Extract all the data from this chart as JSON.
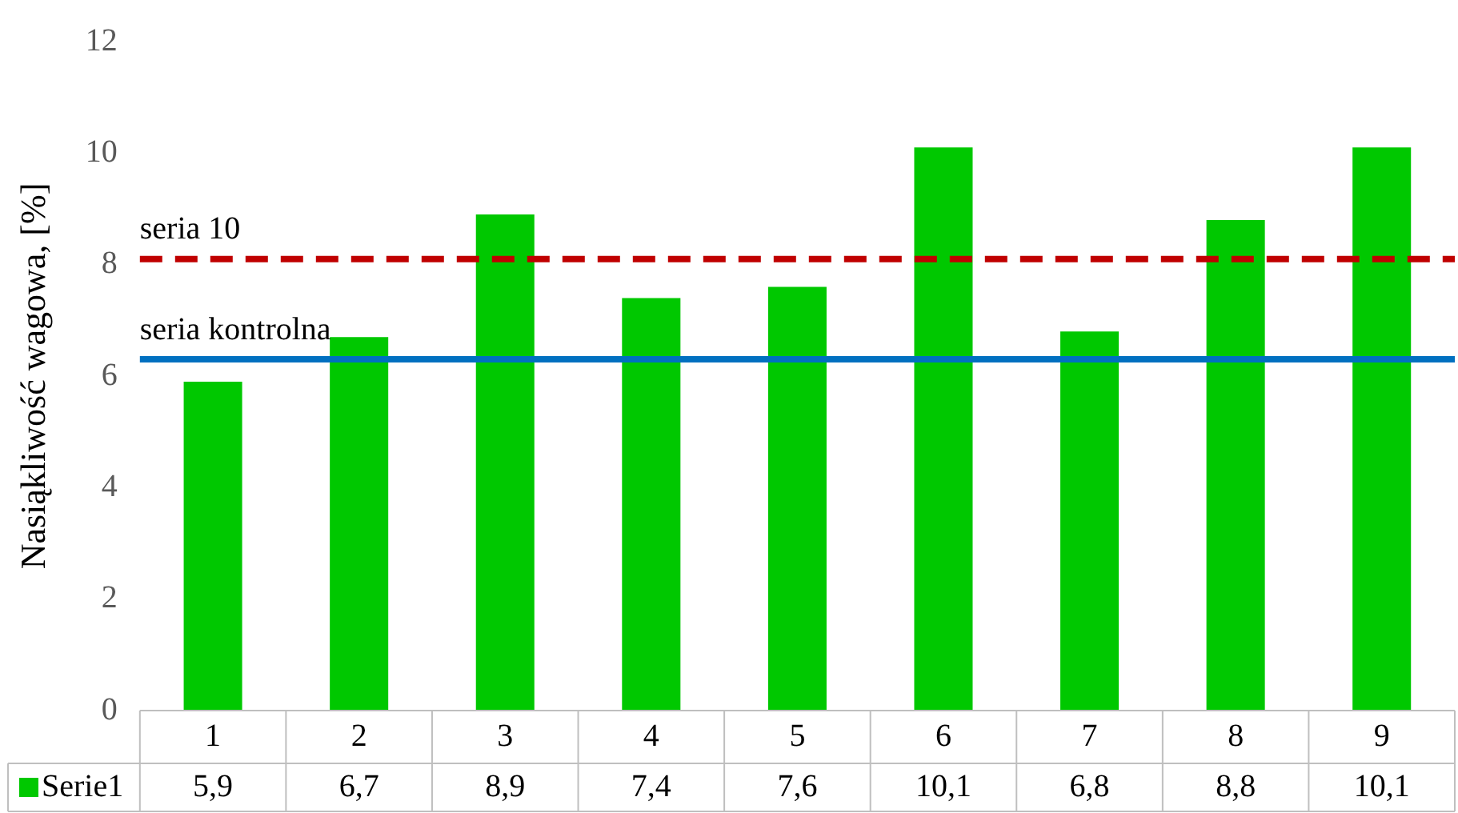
{
  "chart_data": {
    "type": "bar",
    "ylabel": "Nasiąkliwość wagowa, [%]",
    "categories": [
      "1",
      "2",
      "3",
      "4",
      "5",
      "6",
      "7",
      "8",
      "9"
    ],
    "series": [
      {
        "name": "Serie1",
        "color": "#00c800",
        "values": [
          5.9,
          6.7,
          8.9,
          7.4,
          7.6,
          10.1,
          6.8,
          8.8,
          10.1
        ],
        "value_labels": [
          "5,9",
          "6,7",
          "8,9",
          "7,4",
          "7,6",
          "10,1",
          "6,8",
          "8,8",
          "10,1"
        ]
      }
    ],
    "ylim": [
      0,
      12
    ],
    "yticks": [
      0,
      2,
      4,
      6,
      8,
      10,
      12
    ],
    "grid": false,
    "legend": "bottom left",
    "ref_lines": [
      {
        "axis": "y",
        "value": 8.1,
        "label": "seria 10",
        "color": "#c00000",
        "line_style": "dashed"
      },
      {
        "axis": "y",
        "value": 6.3,
        "label": "seria kontrolna",
        "color": "#0070c0",
        "line_style": "solid"
      }
    ]
  }
}
